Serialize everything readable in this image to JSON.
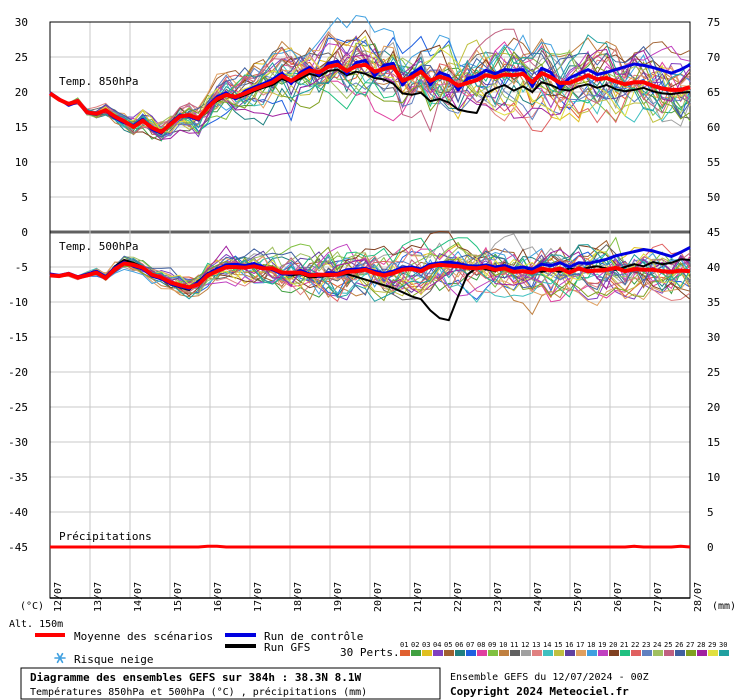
{
  "chart_data": {
    "type": "line",
    "left_ticks": [
      "30",
      "25",
      "20",
      "15",
      "10",
      "5",
      "0",
      "-5",
      "-10",
      "-15",
      "-20",
      "-25",
      "-30",
      "-35",
      "-40",
      "-45"
    ],
    "right_ticks": [
      "75",
      "70",
      "65",
      "60",
      "55",
      "50",
      "45",
      "40",
      "35",
      "30",
      "25",
      "20",
      "15",
      "10",
      "5",
      "0"
    ],
    "x_dates": [
      "13/07",
      "14/07",
      "15/07",
      "16/07",
      "17/07",
      "18/07",
      "19/07",
      "20/07",
      "21/07",
      "22/07",
      "23/07",
      "24/07",
      "25/07",
      "26/07",
      "27/07",
      "28/07"
    ],
    "first_date": "12/07",
    "unit_left": "(°C)",
    "unit_right": "(mm)",
    "alt_label": "Alt. 150m",
    "panel_850_label": "Temp. 850hPa",
    "panel_500_label": "Temp. 500hPa",
    "precip_label": "Précipitations",
    "temp850_mean": [
      19.8,
      18.9,
      18.3,
      18.7,
      17.1,
      16.9,
      17.4,
      16.5,
      15.8,
      15.0,
      15.9,
      14.9,
      14.3,
      15.4,
      16.5,
      16.7,
      16.2,
      17.8,
      19.0,
      19.6,
      19.3,
      19.8,
      20.4,
      20.9,
      21.4,
      22.3,
      21.6,
      22.4,
      23.1,
      22.8,
      23.6,
      23.9,
      23.0,
      23.7,
      23.9,
      22.9,
      23.3,
      23.6,
      21.6,
      22.1,
      22.9,
      21.6,
      22.2,
      21.8,
      20.9,
      21.3,
      21.7,
      22.4,
      22.1,
      22.5,
      22.4,
      22.6,
      21.4,
      22.7,
      22.1,
      21.3,
      21.3,
      21.8,
      22.4,
      21.8,
      22.0,
      21.5,
      21.1,
      21.4,
      21.4,
      20.9,
      20.5,
      20.3,
      20.3,
      20.7
    ],
    "temp850_control": [
      19.9,
      19.0,
      18.1,
      18.6,
      17.0,
      16.8,
      17.3,
      16.3,
      15.6,
      15.2,
      16.1,
      14.7,
      14.1,
      15.6,
      16.7,
      16.5,
      16.0,
      18.0,
      19.3,
      19.9,
      19.0,
      20.1,
      20.7,
      21.2,
      21.8,
      22.7,
      21.2,
      22.8,
      23.5,
      22.4,
      24.1,
      24.4,
      22.6,
      24.2,
      24.5,
      22.3,
      23.8,
      24.1,
      21.0,
      22.6,
      23.5,
      21.0,
      22.8,
      22.3,
      20.3,
      21.9,
      22.3,
      23.1,
      22.6,
      23.2,
      23.1,
      23.2,
      20.8,
      23.4,
      22.8,
      20.6,
      22.0,
      22.6,
      23.2,
      22.5,
      22.8,
      23.2,
      23.6,
      24.0,
      23.8,
      23.5,
      23.1,
      22.7,
      23.2,
      23.9
    ],
    "temp850_gfs": [
      19.7,
      18.8,
      18.2,
      18.6,
      17.2,
      16.8,
      17.5,
      16.4,
      15.9,
      15.1,
      16.0,
      14.8,
      14.5,
      15.3,
      16.6,
      16.8,
      16.1,
      17.9,
      18.7,
      19.5,
      19.0,
      19.5,
      20.1,
      20.6,
      21.0,
      21.9,
      21.3,
      21.9,
      22.6,
      22.2,
      23.0,
      23.2,
      22.4,
      22.9,
      22.6,
      22.0,
      21.8,
      21.2,
      19.8,
      19.6,
      19.9,
      18.7,
      19.0,
      18.5,
      17.5,
      17.2,
      17.0,
      19.8,
      20.5,
      21.0,
      20.2,
      20.8,
      20.0,
      21.4,
      21.0,
      20.4,
      20.2,
      20.8,
      21.1,
      20.6,
      21.0,
      20.4,
      20.1,
      20.3,
      20.6,
      20.1,
      19.8,
      19.7,
      19.9,
      20.0
    ],
    "temp500_mean": [
      -6.2,
      -6.3,
      -6.0,
      -6.5,
      -6.2,
      -5.8,
      -6.6,
      -5.3,
      -4.5,
      -4.7,
      -5.1,
      -6.1,
      -6.5,
      -7.2,
      -7.6,
      -7.9,
      -7.5,
      -6.2,
      -5.6,
      -5.0,
      -5.0,
      -5.1,
      -4.9,
      -5.2,
      -5.2,
      -5.8,
      -5.8,
      -5.8,
      -6.2,
      -6.1,
      -6.1,
      -6.1,
      -5.7,
      -5.6,
      -5.4,
      -5.9,
      -6.2,
      -5.9,
      -5.4,
      -5.3,
      -5.6,
      -4.9,
      -4.7,
      -4.8,
      -4.9,
      -5.1,
      -5.2,
      -5.0,
      -5.4,
      -5.2,
      -5.7,
      -5.6,
      -5.8,
      -5.2,
      -5.5,
      -5.2,
      -5.8,
      -5.2,
      -5.6,
      -5.5,
      -5.4,
      -5.1,
      -5.6,
      -5.3,
      -5.4,
      -5.4,
      -5.6,
      -5.7,
      -5.5,
      -5.6
    ],
    "temp500_control": [
      -6.0,
      -6.2,
      -5.9,
      -6.4,
      -6.0,
      -5.6,
      -6.4,
      -5.1,
      -4.3,
      -4.9,
      -5.3,
      -6.3,
      -6.7,
      -7.4,
      -7.8,
      -8.1,
      -7.2,
      -6.0,
      -5.3,
      -4.7,
      -4.6,
      -4.8,
      -4.5,
      -5.0,
      -5.4,
      -6.0,
      -6.0,
      -5.5,
      -6.0,
      -6.3,
      -5.8,
      -5.9,
      -5.4,
      -5.3,
      -5.2,
      -5.6,
      -5.9,
      -5.6,
      -5.1,
      -5.0,
      -5.3,
      -4.6,
      -4.4,
      -4.3,
      -4.5,
      -4.8,
      -4.9,
      -4.7,
      -5.0,
      -4.8,
      -5.2,
      -5.0,
      -5.3,
      -4.6,
      -4.8,
      -4.4,
      -5.0,
      -4.4,
      -4.5,
      -4.2,
      -3.9,
      -3.4,
      -3.1,
      -2.8,
      -2.5,
      -2.7,
      -3.1,
      -3.5,
      -2.9,
      -2.2
    ],
    "temp500_gfs": [
      -6.1,
      -6.4,
      -6.1,
      -6.6,
      -6.1,
      -5.9,
      -6.5,
      -4.9,
      -4.0,
      -4.4,
      -5.0,
      -6.0,
      -6.6,
      -7.5,
      -7.9,
      -8.3,
      -7.0,
      -5.9,
      -5.2,
      -4.9,
      -4.8,
      -4.9,
      -4.7,
      -5.1,
      -5.3,
      -6.0,
      -6.2,
      -6.0,
      -6.5,
      -6.4,
      -6.3,
      -6.2,
      -6.0,
      -6.4,
      -6.8,
      -7.2,
      -7.6,
      -8.0,
      -8.6,
      -9.2,
      -9.6,
      -11.2,
      -12.3,
      -12.6,
      -9.2,
      -6.1,
      -5.1,
      -5.3,
      -5.6,
      -5.0,
      -5.5,
      -5.6,
      -5.4,
      -5.7,
      -5.4,
      -5.7,
      -5.2,
      -5.4,
      -5.1,
      -4.9,
      -5.2,
      -5.4,
      -5.0,
      -4.6,
      -4.9,
      -4.3,
      -4.6,
      -4.4,
      -3.9,
      -4.0
    ],
    "precip_mean_mm": [
      0,
      0,
      0,
      0,
      0,
      0,
      0,
      0,
      0,
      0,
      0,
      0,
      0,
      0,
      0,
      0,
      0,
      0.1,
      0.1,
      0,
      0,
      0,
      0,
      0,
      0,
      0,
      0,
      0,
      0,
      0,
      0,
      0,
      0,
      0,
      0,
      0,
      0,
      0,
      0,
      0,
      0,
      0,
      0,
      0,
      0,
      0,
      0,
      0,
      0,
      0,
      0,
      0,
      0,
      0,
      0,
      0,
      0,
      0,
      0,
      0,
      0,
      0,
      0,
      0.1,
      0,
      0,
      0,
      0,
      0.1,
      0
    ]
  },
  "legend": {
    "mean_label": "Moyenne des scénarios",
    "control_label": "Run de contrôle",
    "gfs_label": "Run GFS",
    "snow_label": "Risque neige",
    "perts_label": "30 Perts.",
    "pert_numbers": [
      "01",
      "02",
      "03",
      "04",
      "05",
      "06",
      "07",
      "08",
      "09",
      "10",
      "11",
      "12",
      "13",
      "14",
      "15",
      "16",
      "17",
      "18",
      "19",
      "20",
      "21",
      "22",
      "23",
      "24",
      "25",
      "26",
      "27",
      "28",
      "29",
      "30"
    ],
    "pert_colors": [
      "#E06030",
      "#40A040",
      "#E0C020",
      "#8040C0",
      "#A06030",
      "#208080",
      "#2060E0",
      "#E040A0",
      "#80C040",
      "#C08040",
      "#606060",
      "#A0A0A0",
      "#E08080",
      "#40C0C0",
      "#C0C040",
      "#6040A0",
      "#E0A060",
      "#40A0E0",
      "#C040C0",
      "#804020",
      "#20C080",
      "#E06060",
      "#6080C0",
      "#A0C060",
      "#C06080",
      "#4060A0",
      "#80A020",
      "#A020A0",
      "#E0E040",
      "#20A0A0"
    ]
  },
  "footer": {
    "title": "Diagramme des ensembles GEFS sur 384h : 38.3N 8.1W",
    "subtitle": "Températures 850hPa et 500hPa (°C) , précipitations (mm)",
    "run": "Ensemble GEFS du 12/07/2024 - 00Z",
    "copyright": "Copyright 2024 Meteociel.fr"
  },
  "colors": {
    "mean": "#FF0000",
    "control": "#0000E0",
    "gfs": "#000000",
    "grid": "#C8C8C8",
    "snow": "#40A0E0"
  }
}
